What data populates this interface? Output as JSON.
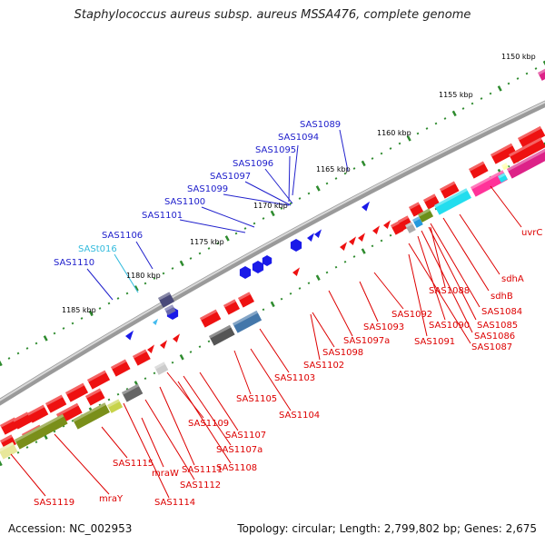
{
  "title": "Staphylococcus aureus subsp. aureus MSSA476, complete genome",
  "footer": {
    "accession": "Accession: NC_002953",
    "summary": "Topology: circular; Length: 2,799,802 bp; Genes: 2,675"
  },
  "colors": {
    "plus_label": "#2020cc",
    "minus_label": "#dd0000",
    "rna_label": "#33bbdd",
    "backbone": "#888888",
    "tick_major": "#2e8b2e"
  },
  "kbp_marks": [
    "1150 kbp",
    "1155 kbp",
    "1160 kbp",
    "1165 kbp",
    "1170 kbp",
    "1175 kbp",
    "1180 kbp",
    "1185 kbp"
  ],
  "upper_labels": [
    "SAS1089",
    "SAS1094",
    "SAS1095",
    "SAS1096",
    "SAS1097",
    "SAS1099",
    "SAS1100",
    "SAS1101",
    "SAS1106",
    "SASt016",
    "SAS1110"
  ],
  "lower_labels": [
    "uvrC",
    "sdhA",
    "sdhB",
    "SAS1084",
    "SAS1085",
    "SAS1086",
    "SAS1087",
    "SAS1088",
    "SAS1090",
    "SAS1091",
    "SAS1092",
    "SAS1093",
    "SAS1097a",
    "SAS1098",
    "SAS1102",
    "SAS1103",
    "SAS1104",
    "SAS1105",
    "SAS1107",
    "SAS1107a",
    "SAS1108",
    "SAS1109",
    "SAS1111",
    "SAS1112",
    "SAS1114",
    "mraW",
    "SAS1115",
    "mraY",
    "SAS1119"
  ]
}
